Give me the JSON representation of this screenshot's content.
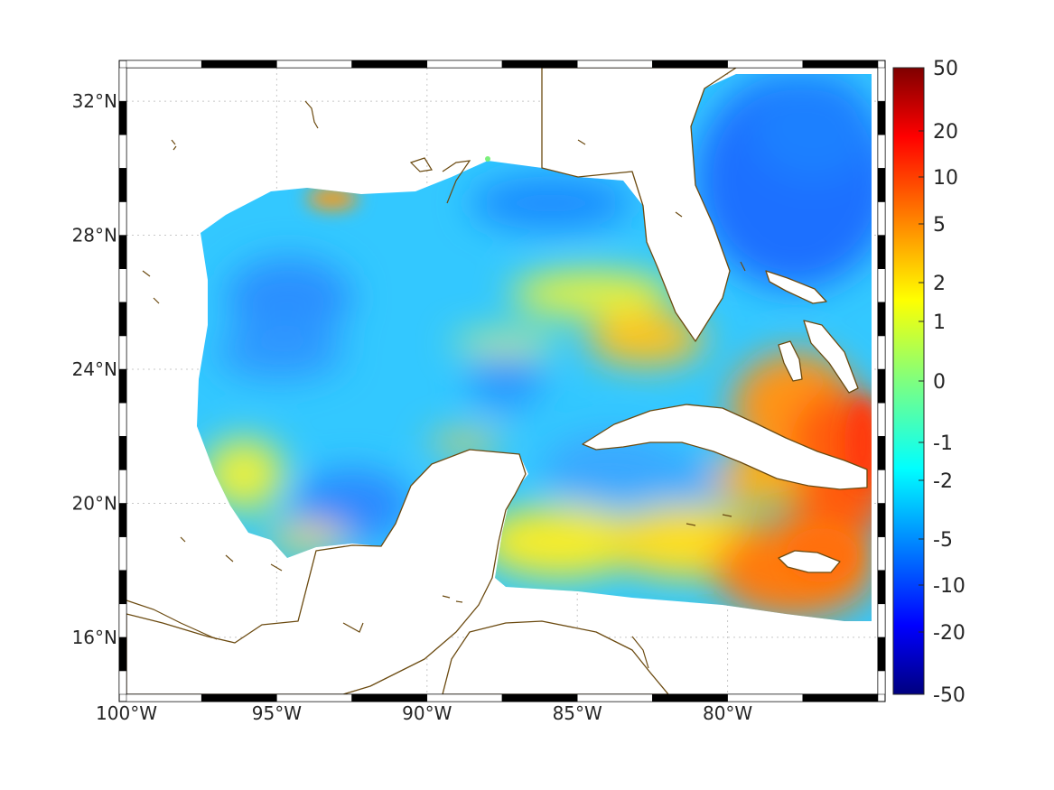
{
  "map": {
    "lon_ticks": [
      {
        "lon": -100,
        "label": "100°W"
      },
      {
        "lon": -95,
        "label": "95°W"
      },
      {
        "lon": -90,
        "label": "90°W"
      },
      {
        "lon": -85,
        "label": "85°W"
      },
      {
        "lon": -80,
        "label": "80°W"
      }
    ],
    "lat_ticks": [
      {
        "lat": 16,
        "label": "16°N"
      },
      {
        "lat": 20,
        "label": "20°N"
      },
      {
        "lat": 24,
        "label": "24°N"
      },
      {
        "lat": 28,
        "label": "28°N"
      },
      {
        "lat": 32,
        "label": "32°N"
      }
    ],
    "lon_range": [
      -100,
      -75
    ],
    "lat_range": [
      14.3,
      33
    ],
    "grid": "dashed",
    "coastline_color": "#6b4a10",
    "colormap": "jet"
  },
  "colorbar": {
    "labels": [
      "50",
      "20",
      "10",
      "5",
      "2",
      "1",
      "0",
      "-1",
      "-2",
      "-5",
      "-10",
      "-20",
      "-50"
    ],
    "range": [
      -50,
      50
    ]
  }
}
